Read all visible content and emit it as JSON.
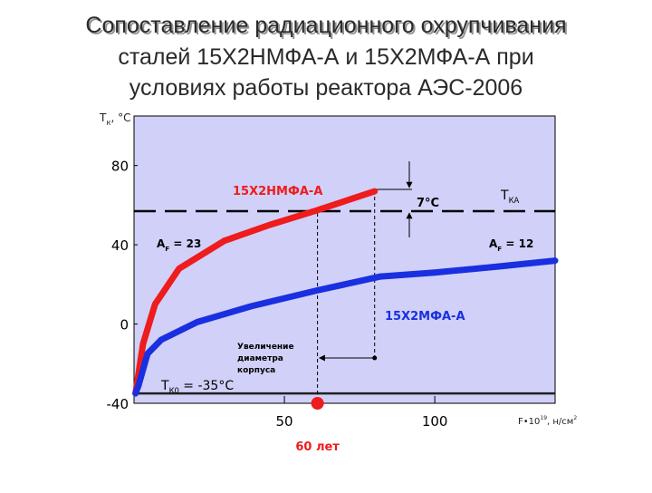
{
  "chart_data": {
    "type": "line",
    "title": [
      "Сопоставление радиационного охрупчивания",
      "сталей 15Х2НМФА-А и 15Х2МФА-А при",
      "условиях работы реактора АЭС-2006"
    ],
    "y_label": {
      "main": "Т",
      "sub": "К",
      "rest": ", °C"
    },
    "x_label": {
      "main": "F•10",
      "sup": "19",
      "rest": ", н/см",
      "sup2": "2"
    },
    "xlim": [
      0,
      140
    ],
    "xticks": [
      50,
      100
    ],
    "ylim": [
      -40,
      105
    ],
    "yticks": [
      -40,
      0,
      40,
      80
    ],
    "series": [
      {
        "name": "15Х2НМФА-А",
        "color": "#ee1c1c",
        "x": [
          0.5,
          3,
          7,
          15,
          30,
          45,
          60,
          80
        ],
        "values": [
          -35,
          -10,
          10,
          28,
          42,
          50,
          57,
          67
        ]
      },
      {
        "name": "15Х2МФА-А",
        "color": "#1a2fe0",
        "x": [
          0.5,
          1.5,
          4.5,
          9,
          21,
          39,
          61,
          82,
          100,
          121,
          140
        ],
        "values": [
          -35,
          -31,
          -15,
          -8,
          1,
          9,
          17,
          24,
          26,
          29,
          32
        ]
      }
    ],
    "reference_lines": [
      {
        "label": {
          "main": "Т",
          "sub": "КА",
          "rest": ""
        },
        "value": 57
      },
      {
        "label": {
          "main": "Т",
          "sub": "К0",
          "rest": " = -35°C"
        },
        "value": -35
      }
    ],
    "coefficients": [
      {
        "main": "А",
        "sub": "F",
        "rest": " = 23"
      },
      {
        "main": "А",
        "sub": "F",
        "rest": " = 12"
      }
    ],
    "delta_label": "7°C",
    "lifetime": {
      "x": 61,
      "label": "60 лет"
    },
    "increase": {
      "x": 80,
      "label": [
        "Увеличение",
        "диаметра",
        "корпуса"
      ]
    }
  }
}
